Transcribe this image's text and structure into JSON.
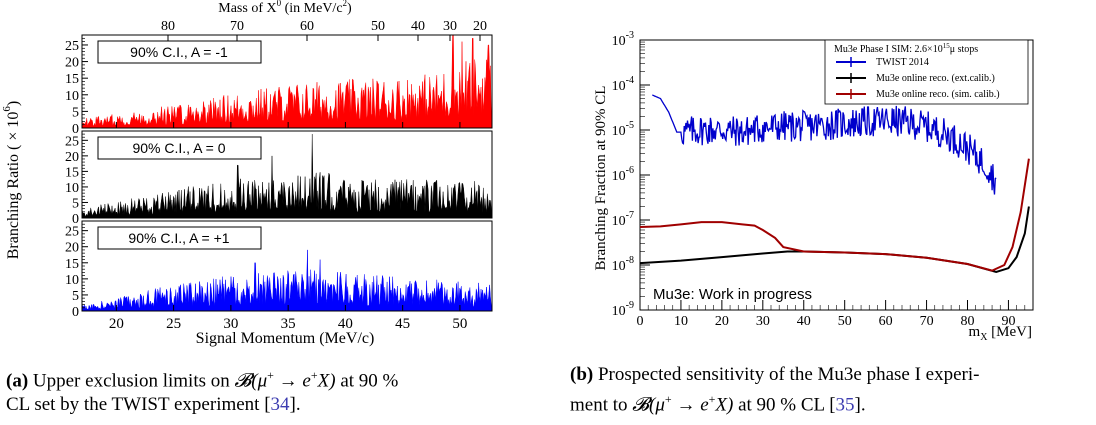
{
  "left_figure": {
    "top_axis_title": "Mass of X",
    "top_axis_sup0": "0",
    "top_axis_unit": "(in MeV/c",
    "top_axis_sup2": "2",
    "top_axis_close": ")",
    "ylabel": "Branching Ratio ( × 10",
    "ylabel_exp": "6",
    "ylabel_close": ")",
    "xlabel": "Signal Momentum (MeV/c)",
    "top_ticks": [
      "80",
      "70",
      "60",
      "50",
      "40",
      "30",
      "20"
    ]
  },
  "right_figure": {
    "ylabel": "Branching Fraction at 90% CL",
    "xlabel": "m",
    "xlabel_sub": "X",
    "xlabel_unit": "[MeV]",
    "legend_title": "Mu3e Phase I SIM: 2.6×10",
    "legend_title_exp": "15",
    "legend_title_tail": "μ stops",
    "watermark": "Mu3e: Work in progress"
  },
  "captions": {
    "a_label": "(a)",
    "a_text_1": "Upper exclusion limits on ",
    "a_math": "𝓑(μ",
    "a_sup1": "+",
    "a_math2": " → e",
    "a_sup2": "+",
    "a_math3": "X)",
    "a_text_2": " at 90 %",
    "a_text_3": "CL set by the TWIST experiment [",
    "a_ref": "34",
    "a_text_4": "].",
    "b_label": "(b)",
    "b_text_1": "Prospected sensitivity of the Mu3e phase I experi-",
    "b_text_2": "ment to ",
    "b_math": "𝓑(μ",
    "b_sup1": "+",
    "b_math2": " → e",
    "b_sup2": "+",
    "b_math3": "X)",
    "b_text_3": " at 90 % CL [",
    "b_ref": "35",
    "b_text_4": "]."
  },
  "chart_data": [
    {
      "type": "area",
      "title": "",
      "xlabel": "Signal Momentum (MeV/c)",
      "ylabel": "Branching Ratio ( × 10^6 )",
      "xlim": [
        17,
        52.8
      ],
      "xticks": [
        20,
        25,
        30,
        35,
        40,
        45,
        50
      ],
      "panels": [
        {
          "label": "90% C.I., A = -1",
          "color": "#ff0000",
          "ylim": [
            0,
            28
          ],
          "yticks": [
            0,
            5,
            10,
            15,
            20,
            25
          ],
          "envelope": [
            [
              17,
              3
            ],
            [
              20,
              4
            ],
            [
              25,
              7
            ],
            [
              30,
              10
            ],
            [
              35,
              13
            ],
            [
              40,
              14
            ],
            [
              45,
              15
            ],
            [
              48,
              16
            ],
            [
              50,
              20
            ],
            [
              52.8,
              22
            ]
          ],
          "spikes": [
            [
              49.4,
              28
            ],
            [
              50.2,
              26
            ],
            [
              51.1,
              27
            ],
            [
              52.5,
              25
            ]
          ]
        },
        {
          "label": "90% C.I., A = 0",
          "color": "#000000",
          "ylim": [
            0,
            28
          ],
          "yticks": [
            0,
            5,
            10,
            15,
            20,
            25
          ],
          "envelope": [
            [
              17,
              3
            ],
            [
              20,
              5
            ],
            [
              25,
              9
            ],
            [
              30,
              12
            ],
            [
              35,
              14
            ],
            [
              37,
              15
            ],
            [
              40,
              13
            ],
            [
              45,
              12
            ],
            [
              50,
              12
            ],
            [
              52.8,
              11
            ]
          ],
          "spikes": [
            [
              37.1,
              27
            ],
            [
              33.6,
              20
            ],
            [
              30.6,
              17
            ]
          ]
        },
        {
          "label": "90% C.I., A = +1",
          "color": "#0000ff",
          "ylim": [
            0,
            28
          ],
          "yticks": [
            0,
            5,
            10,
            15,
            20,
            25
          ],
          "envelope": [
            [
              17,
              2
            ],
            [
              20,
              4
            ],
            [
              25,
              8
            ],
            [
              30,
              11
            ],
            [
              35,
              12
            ],
            [
              37,
              13
            ],
            [
              40,
              12
            ],
            [
              45,
              10
            ],
            [
              50,
              9
            ],
            [
              52.8,
              8
            ]
          ],
          "spikes": [
            [
              36.7,
              19
            ],
            [
              32.1,
              15
            ],
            [
              37.8,
              16
            ]
          ]
        }
      ],
      "top_axis": {
        "title": "Mass of X^0 (in MeV/c^2)",
        "ticks": [
          80,
          70,
          60,
          50,
          40,
          30,
          20
        ]
      }
    },
    {
      "type": "line",
      "title": "Mu3e Phase I SIM: 2.6×10^15 μ stops",
      "xlabel": "m_X [MeV]",
      "ylabel": "Branching Fraction at 90% CL",
      "xlim": [
        0,
        96
      ],
      "ylim": [
        1e-09,
        0.001
      ],
      "yscale": "log",
      "xticks": [
        0,
        10,
        20,
        30,
        40,
        50,
        60,
        70,
        80,
        90
      ],
      "yticks": [
        "10^-9",
        "10^-8",
        "10^-7",
        "10^-6",
        "10^-5",
        "10^-4",
        "10^-3"
      ],
      "legend_position": "top-right",
      "series": [
        {
          "name": "TWIST 2014",
          "color": "#0000cc",
          "noise": 0.35,
          "x": [
            3,
            5,
            7,
            9,
            11,
            15,
            20,
            25,
            30,
            35,
            40,
            45,
            50,
            55,
            60,
            65,
            70,
            75,
            80,
            85,
            87
          ],
          "y": [
            6e-05,
            5e-05,
            2.5e-05,
            9e-06,
            9e-06,
            1e-05,
            1e-05,
            9e-06,
            1.1e-05,
            1.2e-05,
            1.2e-05,
            1.3e-05,
            1.4e-05,
            1.5e-05,
            1.6e-05,
            1.5e-05,
            1.2e-05,
            8e-06,
            4e-06,
            1.5e-06,
            7e-07
          ]
        },
        {
          "name": "Mu3e online reco. (ext.calib.)",
          "color": "#000000",
          "noise": 0,
          "x": [
            0,
            10,
            20,
            30,
            36,
            40,
            50,
            60,
            70,
            80,
            87,
            90,
            92,
            94,
            95
          ],
          "y": [
            1.1e-08,
            1.25e-08,
            1.5e-08,
            1.8e-08,
            2e-08,
            2e-08,
            1.9e-08,
            1.75e-08,
            1.45e-08,
            1.05e-08,
            7e-09,
            8.5e-09,
            1.5e-08,
            5e-08,
            2e-07
          ]
        },
        {
          "name": "Mu3e online reco. (sim. calib.)",
          "color": "#a00000",
          "noise": 0,
          "x": [
            0,
            5,
            10,
            15,
            20,
            25,
            28,
            30,
            33,
            35,
            40,
            50,
            60,
            70,
            80,
            86,
            89,
            91,
            93,
            95
          ],
          "y": [
            7e-08,
            7.2e-08,
            8e-08,
            9e-08,
            9e-08,
            8e-08,
            7.5e-08,
            6e-08,
            4e-08,
            2.5e-08,
            2e-08,
            1.9e-08,
            1.75e-08,
            1.45e-08,
            1.05e-08,
            7.5e-09,
            1e-08,
            2.5e-08,
            1.5e-07,
            2.3e-06
          ]
        }
      ]
    }
  ]
}
